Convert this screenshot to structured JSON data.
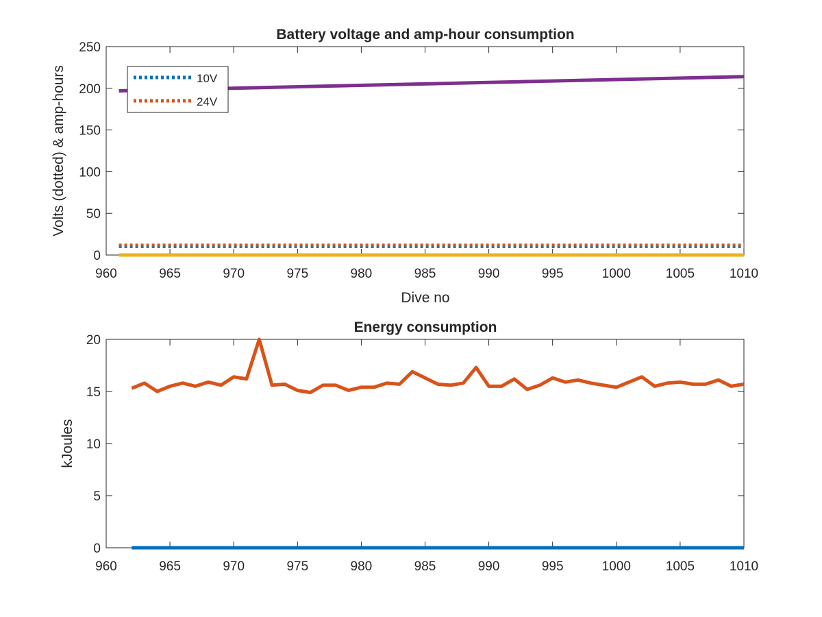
{
  "chart_data": [
    {
      "type": "line",
      "title": "Battery voltage and amp-hour consumption",
      "xlabel": "Dive no",
      "ylabel": "Volts (dotted) & amp-hours",
      "xlim": [
        960,
        1010
      ],
      "ylim": [
        0,
        250
      ],
      "xticks": [
        960,
        965,
        970,
        975,
        980,
        985,
        990,
        995,
        1000,
        1005,
        1010
      ],
      "yticks": [
        0,
        50,
        100,
        150,
        200,
        250
      ],
      "grid": false,
      "legend": {
        "placement": "top-left",
        "entries": [
          "10V",
          "24V"
        ]
      },
      "series": [
        {
          "name": "10V",
          "style": "dotted",
          "color": "#0072BD",
          "x": [
            961,
            1010
          ],
          "y": [
            10,
            10
          ]
        },
        {
          "name": "24V",
          "style": "dotted",
          "color": "#D95319",
          "x": [
            961,
            1010
          ],
          "y": [
            12,
            12
          ]
        },
        {
          "style": "solid",
          "color": "#EDB120",
          "x": [
            961,
            1010
          ],
          "y": [
            0,
            0
          ]
        },
        {
          "style": "solid",
          "color": "#7E2F8E",
          "x": [
            961,
            1010
          ],
          "y": [
            197,
            214
          ]
        }
      ]
    },
    {
      "type": "line",
      "title": "Energy consumption",
      "xlabel": "",
      "ylabel": "kJoules",
      "xlim": [
        960,
        1010
      ],
      "ylim": [
        0,
        20
      ],
      "xticks": [
        960,
        965,
        970,
        975,
        980,
        985,
        990,
        995,
        1000,
        1005,
        1010
      ],
      "yticks": [
        0,
        5,
        10,
        15,
        20
      ],
      "grid": false,
      "series": [
        {
          "style": "solid",
          "color": "#0072BD",
          "x": [
            962,
            1010
          ],
          "y": [
            0,
            0
          ]
        },
        {
          "style": "solid",
          "color": "#D95319",
          "x": [
            962,
            963,
            964,
            965,
            966,
            967,
            968,
            969,
            970,
            971,
            972,
            973,
            974,
            975,
            976,
            977,
            978,
            979,
            980,
            981,
            982,
            983,
            984,
            985,
            986,
            987,
            988,
            989,
            990,
            991,
            992,
            993,
            994,
            995,
            996,
            997,
            998,
            999,
            1000,
            1001,
            1002,
            1003,
            1004,
            1005,
            1006,
            1007,
            1008,
            1009,
            1010
          ],
          "y": [
            15.3,
            15.8,
            15.0,
            15.5,
            15.8,
            15.5,
            15.9,
            15.6,
            16.4,
            16.2,
            20.0,
            15.6,
            15.7,
            15.1,
            14.9,
            15.6,
            15.6,
            15.1,
            15.4,
            15.4,
            15.8,
            15.7,
            16.9,
            16.3,
            15.7,
            15.6,
            15.8,
            17.3,
            15.5,
            15.5,
            16.2,
            15.2,
            15.6,
            16.3,
            15.9,
            16.1,
            15.8,
            15.6,
            15.4,
            15.9,
            16.4,
            15.5,
            15.8,
            15.9,
            15.7,
            15.7,
            16.1,
            15.5,
            15.7
          ]
        }
      ]
    }
  ]
}
